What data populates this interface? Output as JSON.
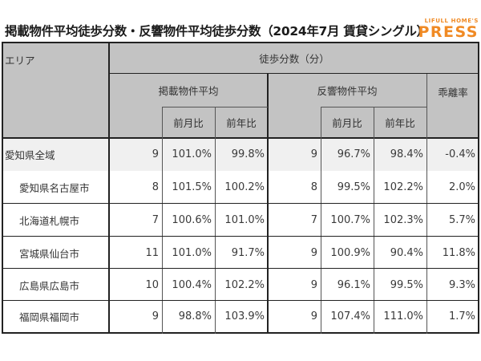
{
  "title": "掲載物件平均徒歩分数・反響物件平均徒歩分数（2024年7月 賃貸シングル）",
  "logo": {
    "top": "LIFULL HOME'S",
    "main": "PRESS",
    "color": "#f08a24"
  },
  "table": {
    "headers": {
      "area": "エリア",
      "walk_minutes": "徒歩分数（分）",
      "listed_avg": "掲載物件平均",
      "inquiry_avg": "反響物件平均",
      "divergence": "乖離率",
      "mom": "前月比",
      "yoy": "前年比"
    },
    "rows": [
      {
        "area": "愛知県全域",
        "listed": "9",
        "listed_mom": "101.0%",
        "listed_yoy": "99.8%",
        "inquiry": "9",
        "inquiry_mom": "96.7%",
        "inquiry_yoy": "98.4%",
        "divergence": "-0.4%"
      },
      {
        "area": "愛知県名古屋市",
        "listed": "8",
        "listed_mom": "101.5%",
        "listed_yoy": "100.2%",
        "inquiry": "8",
        "inquiry_mom": "99.5%",
        "inquiry_yoy": "102.2%",
        "divergence": "2.0%"
      },
      {
        "area": "北海道札幌市",
        "listed": "7",
        "listed_mom": "100.6%",
        "listed_yoy": "101.0%",
        "inquiry": "7",
        "inquiry_mom": "100.7%",
        "inquiry_yoy": "102.3%",
        "divergence": "5.7%"
      },
      {
        "area": "宮城県仙台市",
        "listed": "11",
        "listed_mom": "101.0%",
        "listed_yoy": "91.7%",
        "inquiry": "9",
        "inquiry_mom": "100.9%",
        "inquiry_yoy": "90.4%",
        "divergence": "11.8%"
      },
      {
        "area": "広島県広島市",
        "listed": "10",
        "listed_mom": "100.4%",
        "listed_yoy": "102.2%",
        "inquiry": "9",
        "inquiry_mom": "96.1%",
        "inquiry_yoy": "99.5%",
        "divergence": "9.3%"
      },
      {
        "area": "福岡県福岡市",
        "listed": "9",
        "listed_mom": "98.8%",
        "listed_yoy": "103.9%",
        "inquiry": "9",
        "inquiry_mom": "107.4%",
        "inquiry_yoy": "111.0%",
        "divergence": "1.7%"
      }
    ]
  },
  "colors": {
    "header_bg": "#c3c3c3",
    "highlight_row_bg": "#f0f0f0"
  }
}
